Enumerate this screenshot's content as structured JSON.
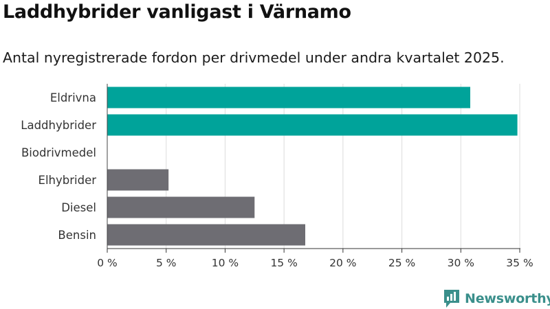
{
  "header": {
    "title": "Laddhybrider vanligast i Värnamo",
    "subtitle": "Antal nyregistrerade fordon per drivmedel under andra kvartalet 2025."
  },
  "brand": {
    "name": "Newsworthy",
    "icon": "newsworthy-logo-icon",
    "color": "#3a8f8b"
  },
  "colors": {
    "highlight": "#00a39a",
    "default": "#6e6d73",
    "grid": "#dcdcdc"
  },
  "chart_data": {
    "type": "bar",
    "orientation": "horizontal",
    "categories": [
      "Eldrivna",
      "Laddhybrider",
      "Biodrivmedel",
      "Elhybrider",
      "Diesel",
      "Bensin"
    ],
    "values": [
      30.8,
      34.8,
      0,
      5.2,
      12.5,
      16.8
    ],
    "highlighted": [
      true,
      true,
      false,
      false,
      false,
      false
    ],
    "xlim": [
      0,
      35
    ],
    "xticks": [
      0,
      5,
      10,
      15,
      20,
      25,
      30,
      35
    ],
    "xtick_labels": [
      "0 %",
      "5 %",
      "10 %",
      "15 %",
      "20 %",
      "25 %",
      "30 %",
      "35 %"
    ],
    "grid": true
  }
}
